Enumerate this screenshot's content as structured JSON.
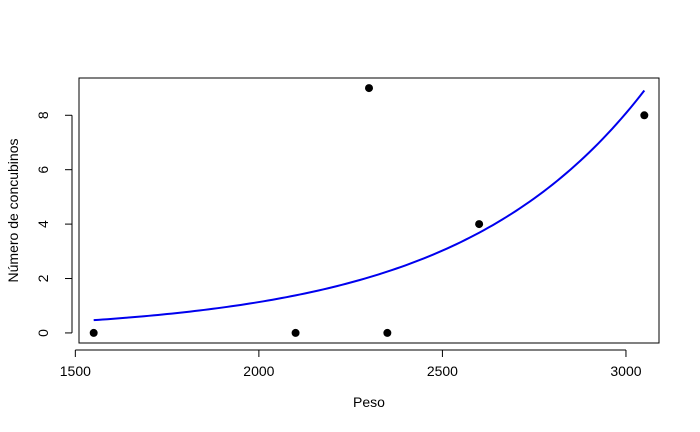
{
  "chart_data": {
    "type": "scatter",
    "title": "",
    "xlabel": "Peso",
    "ylabel": "Número de concubinos",
    "xlim": [
      1510,
      3090
    ],
    "ylim": [
      -0.37,
      9.37
    ],
    "xticks": [
      1500,
      2000,
      2500,
      3000
    ],
    "yticks": [
      0,
      2,
      4,
      6,
      8
    ],
    "grid": false,
    "points": [
      {
        "x": 1550,
        "y": 0
      },
      {
        "x": 2100,
        "y": 0
      },
      {
        "x": 2300,
        "y": 9
      },
      {
        "x": 2350,
        "y": 0
      },
      {
        "x": 2600,
        "y": 4
      },
      {
        "x": 3050,
        "y": 8
      }
    ],
    "curve": {
      "model": "exp",
      "intercept": -3.8,
      "slope": 0.001963,
      "x_from": 1550,
      "x_to": 3050
    },
    "colors": {
      "points": "#000000",
      "curve": "#0000ee",
      "axes": "#000000"
    }
  }
}
